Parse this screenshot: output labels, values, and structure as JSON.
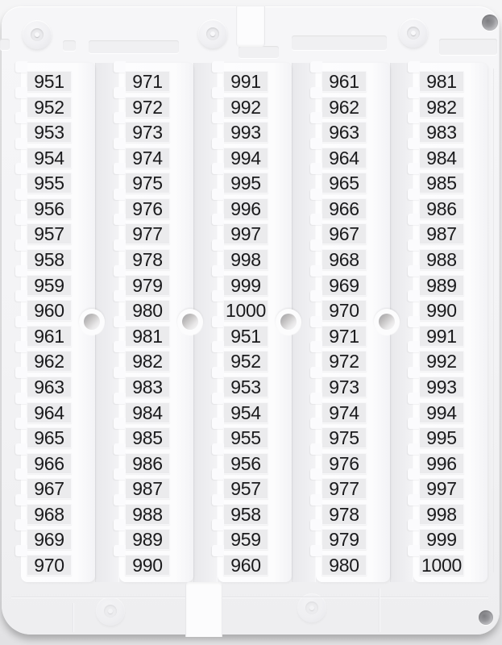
{
  "columns": [
    {
      "values": [
        "951",
        "952",
        "953",
        "954",
        "955",
        "956",
        "957",
        "958",
        "959",
        "960",
        "961",
        "962",
        "963",
        "964",
        "965",
        "966",
        "967",
        "968",
        "969",
        "970"
      ]
    },
    {
      "values": [
        "971",
        "972",
        "973",
        "974",
        "975",
        "976",
        "977",
        "978",
        "979",
        "980",
        "981",
        "982",
        "983",
        "984",
        "985",
        "986",
        "987",
        "988",
        "989",
        "990"
      ]
    },
    {
      "values": [
        "991",
        "992",
        "993",
        "994",
        "995",
        "996",
        "997",
        "998",
        "999",
        "1000",
        "951",
        "952",
        "953",
        "954",
        "955",
        "956",
        "957",
        "958",
        "959",
        "960"
      ]
    },
    {
      "values": [
        "961",
        "962",
        "963",
        "964",
        "965",
        "966",
        "967",
        "968",
        "969",
        "970",
        "971",
        "972",
        "973",
        "974",
        "975",
        "976",
        "977",
        "978",
        "979",
        "980"
      ]
    },
    {
      "values": [
        "981",
        "982",
        "983",
        "984",
        "985",
        "986",
        "987",
        "988",
        "989",
        "990",
        "991",
        "992",
        "993",
        "994",
        "995",
        "996",
        "997",
        "998",
        "999",
        "1000"
      ]
    }
  ],
  "colors": {
    "card_bg": "#f3f3f5",
    "strip_bg": "#fcfcfd",
    "tag_bg": "#ebebed",
    "tag_text": "#1a1a1c"
  }
}
